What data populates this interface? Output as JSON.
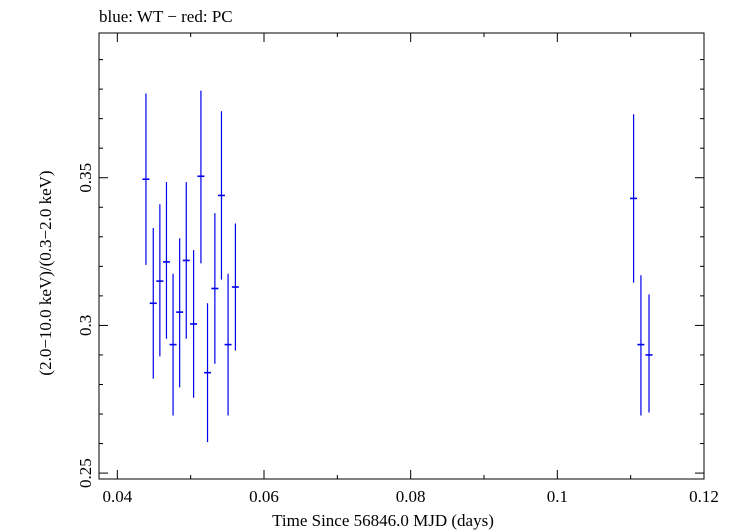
{
  "chart_data": {
    "type": "scatter",
    "title": "blue: WT − red: PC",
    "xlabel": "Time Since 56846.0 MJD (days)",
    "ylabel": "(2.0−10.0 keV)/(0.3−2.0 keV)",
    "xlim": [
      0.0375,
      0.12
    ],
    "ylim": [
      0.248,
      0.399
    ],
    "x_ticks": [
      0.04,
      0.06,
      0.08,
      0.1,
      0.12
    ],
    "x_tick_labels": [
      "0.04",
      "0.06",
      "0.08",
      "0.1",
      "0.12"
    ],
    "y_ticks": [
      0.25,
      0.3,
      0.35
    ],
    "y_tick_labels": [
      "0.25",
      "0.3",
      "0.35"
    ],
    "grid": false,
    "series": [
      {
        "name": "WT",
        "color": "#0000ee",
        "points": [
          {
            "x": 0.0439,
            "y": 0.3495,
            "ylow": 0.3205,
            "yhigh": 0.3785
          },
          {
            "x": 0.0449,
            "y": 0.3075,
            "ylow": 0.282,
            "yhigh": 0.333
          },
          {
            "x": 0.0458,
            "y": 0.315,
            "ylow": 0.2895,
            "yhigh": 0.341
          },
          {
            "x": 0.0467,
            "y": 0.3215,
            "ylow": 0.2955,
            "yhigh": 0.3485
          },
          {
            "x": 0.0476,
            "y": 0.2935,
            "ylow": 0.2695,
            "yhigh": 0.3175
          },
          {
            "x": 0.0485,
            "y": 0.3045,
            "ylow": 0.279,
            "yhigh": 0.3295
          },
          {
            "x": 0.0494,
            "y": 0.322,
            "ylow": 0.2955,
            "yhigh": 0.3485
          },
          {
            "x": 0.0504,
            "y": 0.3005,
            "ylow": 0.2755,
            "yhigh": 0.3255
          },
          {
            "x": 0.0514,
            "y": 0.3505,
            "ylow": 0.321,
            "yhigh": 0.3795
          },
          {
            "x": 0.0523,
            "y": 0.284,
            "ylow": 0.2605,
            "yhigh": 0.3075
          },
          {
            "x": 0.0533,
            "y": 0.3125,
            "ylow": 0.287,
            "yhigh": 0.338
          },
          {
            "x": 0.0542,
            "y": 0.344,
            "ylow": 0.3155,
            "yhigh": 0.3725
          },
          {
            "x": 0.0551,
            "y": 0.2935,
            "ylow": 0.2695,
            "yhigh": 0.3175
          },
          {
            "x": 0.0561,
            "y": 0.313,
            "ylow": 0.2915,
            "yhigh": 0.3345
          },
          {
            "x": 0.1104,
            "y": 0.343,
            "ylow": 0.3145,
            "yhigh": 0.3715
          },
          {
            "x": 0.1114,
            "y": 0.2935,
            "ylow": 0.2695,
            "yhigh": 0.317
          },
          {
            "x": 0.1125,
            "y": 0.29,
            "ylow": 0.2705,
            "yhigh": 0.3105
          }
        ]
      }
    ]
  }
}
